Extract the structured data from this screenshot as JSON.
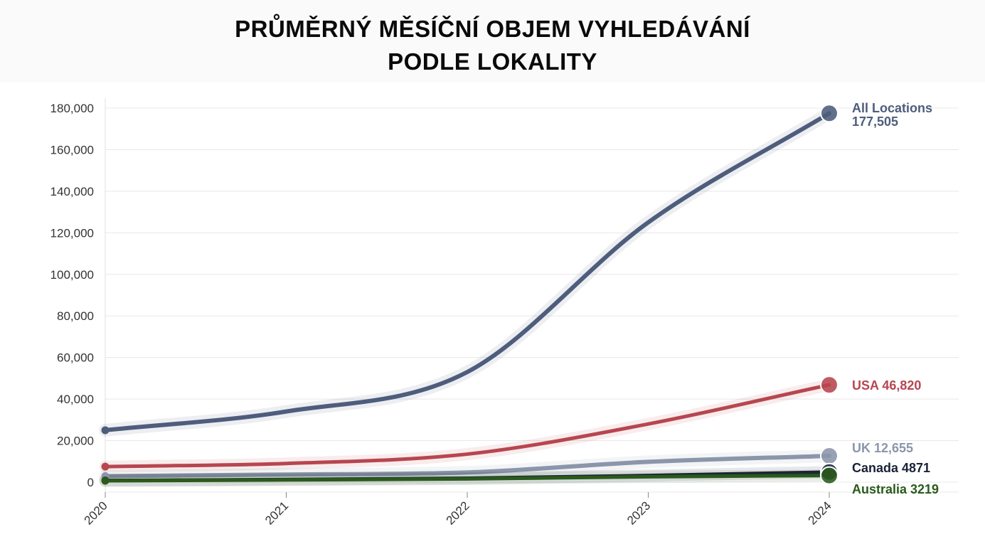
{
  "title_line1": "PRŮMĚRNÝ MĚSÍČNÍ OBJEM VYHLEDÁVÁNÍ",
  "title_line2": "PODLE LOKALITY",
  "chart_data": {
    "type": "line",
    "title": "PRŮMĚRNÝ MĚSÍČNÍ OBJEM VYHLEDÁVÁNÍ PODLE LOKALITY",
    "x": [
      2020,
      2021,
      2022,
      2023,
      2024
    ],
    "x_tick_labels": [
      "2020",
      "2021",
      "2022",
      "2023",
      "2024"
    ],
    "y_ticks": [
      0,
      20000,
      40000,
      60000,
      80000,
      100000,
      120000,
      140000,
      160000,
      180000
    ],
    "y_tick_labels": [
      "0",
      "20,000",
      "40,000",
      "60,000",
      "80,000",
      "100,000",
      "120,000",
      "140,000",
      "160,000",
      "180,000"
    ],
    "ylim": [
      0,
      180000
    ],
    "grid": true,
    "legend": "end-of-line labels",
    "series": [
      {
        "key": "all",
        "name": "All Locations",
        "label": "All Locations",
        "value_label": "177,505",
        "color": "#4e5d7b",
        "width": 6,
        "values": [
          25000,
          34000,
          53000,
          125000,
          177505
        ]
      },
      {
        "key": "usa",
        "name": "USA",
        "label": "USA 46,820",
        "color": "#b7464f",
        "width": 5,
        "values": [
          7500,
          9000,
          13500,
          28000,
          46820
        ]
      },
      {
        "key": "uk",
        "name": "UK",
        "label": "UK 12,655",
        "color": "#8b96ab",
        "width": 6,
        "values": [
          2900,
          3700,
          4700,
          9800,
          12655
        ]
      },
      {
        "key": "canada",
        "name": "Canada",
        "label": "Canada 4871",
        "color": "#1a2238",
        "width": 5,
        "values": [
          800,
          1300,
          1900,
          3200,
          4871
        ]
      },
      {
        "key": "australia",
        "name": "Australia",
        "label": "Australia 3219",
        "color": "#2a5a1c",
        "width": 5,
        "values": [
          700,
          1100,
          1600,
          2600,
          3219
        ]
      }
    ]
  }
}
